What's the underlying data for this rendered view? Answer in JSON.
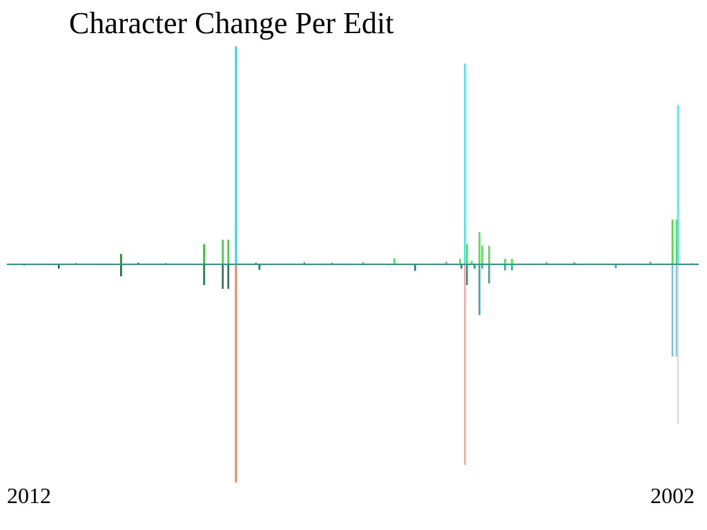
{
  "chart_data": {
    "type": "bar",
    "title": "Character Change Per Edit",
    "x_tick_labels": [
      "2012",
      "2002"
    ],
    "ylim": [
      -2000,
      2000
    ],
    "baseline_color": "#1e9e8a",
    "bars": [
      {
        "x": 0.025,
        "value": -10,
        "color": "#116633"
      },
      {
        "x": 0.06,
        "value": -8,
        "color": "#116633"
      },
      {
        "x": 0.075,
        "value": -40,
        "color": "#116633"
      },
      {
        "x": 0.1,
        "value": 10,
        "color": "#116633"
      },
      {
        "x": 0.14,
        "value": -8,
        "color": "#116633"
      },
      {
        "x": 0.165,
        "value": 95,
        "color": "#118822"
      },
      {
        "x": 0.165,
        "value": -110,
        "color": "#116633"
      },
      {
        "x": 0.19,
        "value": 15,
        "color": "#118822"
      },
      {
        "x": 0.23,
        "value": 10,
        "color": "#118822"
      },
      {
        "x": 0.285,
        "value": 185,
        "color": "#22bb22"
      },
      {
        "x": 0.285,
        "value": -190,
        "color": "#117744"
      },
      {
        "x": 0.312,
        "value": 225,
        "color": "#22dd22"
      },
      {
        "x": 0.312,
        "value": -225,
        "color": "#117744"
      },
      {
        "x": 0.32,
        "value": 225,
        "color": "#22dd22"
      },
      {
        "x": 0.32,
        "value": -225,
        "color": "#117744"
      },
      {
        "x": 0.331,
        "value": 2000,
        "color": "#22d3f0"
      },
      {
        "x": 0.331,
        "value": -2000,
        "color": "#f07a5e"
      },
      {
        "x": 0.36,
        "value": 15,
        "color": "#22aa33"
      },
      {
        "x": 0.365,
        "value": -50,
        "color": "#117766"
      },
      {
        "x": 0.43,
        "value": 20,
        "color": "#33cc33"
      },
      {
        "x": 0.47,
        "value": 15,
        "color": "#33dd33"
      },
      {
        "x": 0.515,
        "value": 20,
        "color": "#33ee33"
      },
      {
        "x": 0.56,
        "value": 55,
        "color": "#33ee33"
      },
      {
        "x": 0.59,
        "value": -60,
        "color": "#117777"
      },
      {
        "x": 0.635,
        "value": 25,
        "color": "#33ee33"
      },
      {
        "x": 0.655,
        "value": 50,
        "color": "#33ee33"
      },
      {
        "x": 0.657,
        "value": -40,
        "color": "#118877"
      },
      {
        "x": 0.662,
        "value": 1840,
        "color": "#33eee6"
      },
      {
        "x": 0.662,
        "value": -1840,
        "color": "#f4a8a0"
      },
      {
        "x": 0.665,
        "value": 185,
        "color": "#33ee33"
      },
      {
        "x": 0.665,
        "value": -190,
        "color": "#119999"
      },
      {
        "x": 0.672,
        "value": 30,
        "color": "#33ee33"
      },
      {
        "x": 0.676,
        "value": -40,
        "color": "#119999"
      },
      {
        "x": 0.683,
        "value": 295,
        "color": "#33ee33"
      },
      {
        "x": 0.683,
        "value": -465,
        "color": "#22aaaa"
      },
      {
        "x": 0.687,
        "value": 170,
        "color": "#33ee33"
      },
      {
        "x": 0.687,
        "value": -40,
        "color": "#22aaaa"
      },
      {
        "x": 0.697,
        "value": 170,
        "color": "#33ee33"
      },
      {
        "x": 0.697,
        "value": -175,
        "color": "#22aaaa"
      },
      {
        "x": 0.72,
        "value": 50,
        "color": "#33ee33"
      },
      {
        "x": 0.72,
        "value": -55,
        "color": "#22aaaa"
      },
      {
        "x": 0.73,
        "value": 50,
        "color": "#33ee33"
      },
      {
        "x": 0.73,
        "value": -55,
        "color": "#22aaaa"
      },
      {
        "x": 0.78,
        "value": 20,
        "color": "#33ee33"
      },
      {
        "x": 0.82,
        "value": 20,
        "color": "#33ee33"
      },
      {
        "x": 0.88,
        "value": -35,
        "color": "#22bbcc"
      },
      {
        "x": 0.93,
        "value": 25,
        "color": "#33ee33"
      },
      {
        "x": 0.962,
        "value": 410,
        "color": "#33ee33"
      },
      {
        "x": 0.962,
        "value": -845,
        "color": "#66cce0"
      },
      {
        "x": 0.968,
        "value": 410,
        "color": "#33ee33"
      },
      {
        "x": 0.968,
        "value": -845,
        "color": "#66cce0"
      },
      {
        "x": 0.97,
        "value": 1460,
        "color": "#44eeee"
      },
      {
        "x": 0.97,
        "value": -1460,
        "color": "#ddd6ee"
      },
      {
        "x": 0.99,
        "value": 10,
        "color": "#22ccee"
      }
    ]
  }
}
